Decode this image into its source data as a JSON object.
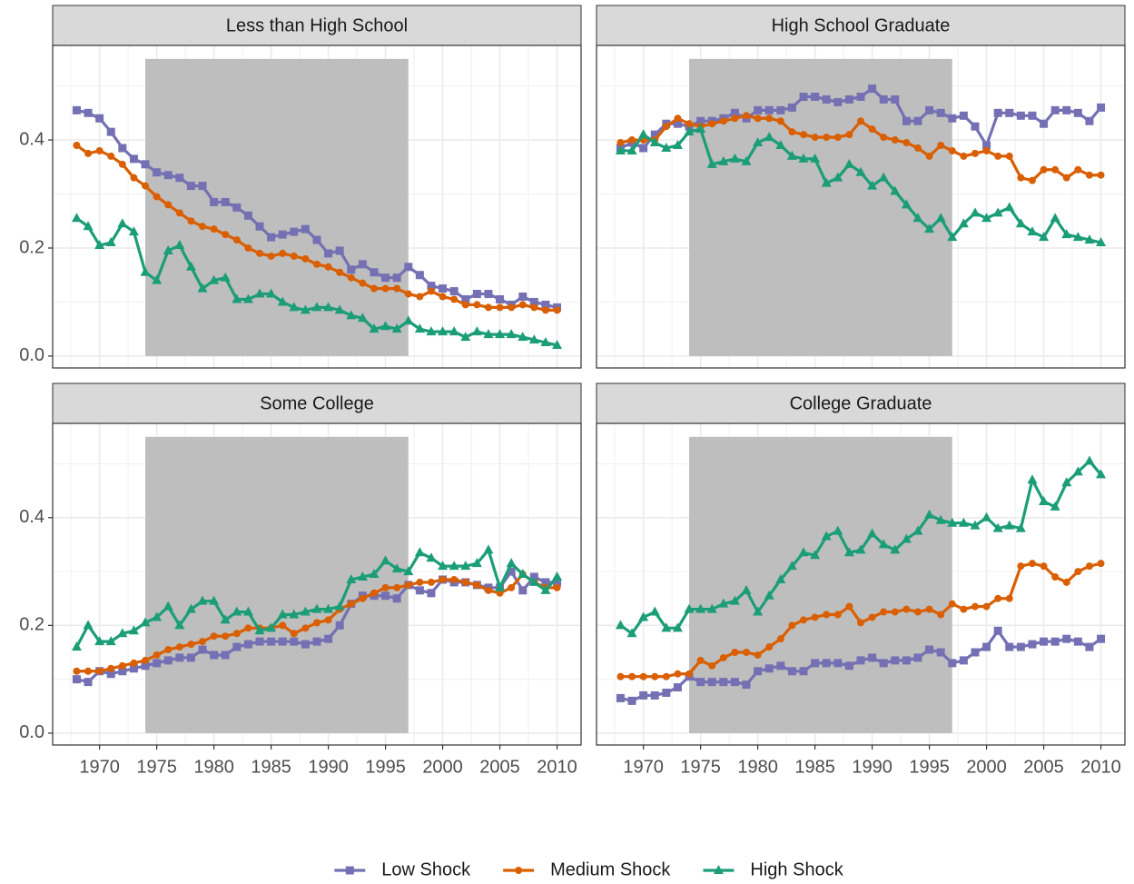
{
  "chart_data": [
    {
      "type": "line",
      "title": "Less than High School",
      "x": [
        1968,
        1969,
        1970,
        1971,
        1972,
        1973,
        1974,
        1975,
        1976,
        1977,
        1978,
        1979,
        1980,
        1981,
        1982,
        1983,
        1984,
        1985,
        1986,
        1987,
        1988,
        1989,
        1990,
        1991,
        1992,
        1993,
        1994,
        1995,
        1996,
        1997,
        1998,
        1999,
        2000,
        2001,
        2002,
        2003,
        2004,
        2005,
        2006,
        2007,
        2008,
        2009,
        2010
      ],
      "series": [
        {
          "name": "Low Shock",
          "color": "#7570b3",
          "marker": "square",
          "values": [
            0.455,
            0.45,
            0.44,
            0.415,
            0.385,
            0.365,
            0.355,
            0.34,
            0.335,
            0.33,
            0.315,
            0.315,
            0.285,
            0.285,
            0.275,
            0.26,
            0.24,
            0.22,
            0.225,
            0.23,
            0.235,
            0.215,
            0.19,
            0.195,
            0.16,
            0.17,
            0.155,
            0.145,
            0.145,
            0.165,
            0.15,
            0.13,
            0.125,
            0.12,
            0.105,
            0.115,
            0.115,
            0.105,
            0.095,
            0.11,
            0.1,
            0.095,
            0.09
          ]
        },
        {
          "name": "Medium Shock",
          "color": "#d95f02",
          "marker": "circle",
          "values": [
            0.39,
            0.375,
            0.38,
            0.37,
            0.355,
            0.33,
            0.315,
            0.295,
            0.28,
            0.265,
            0.25,
            0.24,
            0.235,
            0.225,
            0.215,
            0.2,
            0.19,
            0.185,
            0.19,
            0.185,
            0.18,
            0.17,
            0.165,
            0.155,
            0.145,
            0.135,
            0.125,
            0.125,
            0.125,
            0.115,
            0.11,
            0.12,
            0.11,
            0.105,
            0.095,
            0.095,
            0.09,
            0.09,
            0.09,
            0.095,
            0.09,
            0.085,
            0.085
          ]
        },
        {
          "name": "High Shock",
          "color": "#1b9e77",
          "marker": "triangle",
          "values": [
            0.255,
            0.24,
            0.205,
            0.21,
            0.245,
            0.23,
            0.155,
            0.14,
            0.195,
            0.205,
            0.165,
            0.125,
            0.14,
            0.145,
            0.105,
            0.105,
            0.115,
            0.115,
            0.1,
            0.09,
            0.085,
            0.09,
            0.09,
            0.085,
            0.075,
            0.07,
            0.05,
            0.055,
            0.05,
            0.065,
            0.05,
            0.045,
            0.045,
            0.045,
            0.035,
            0.045,
            0.04,
            0.04,
            0.04,
            0.035,
            0.03,
            0.025,
            0.02
          ]
        }
      ],
      "highlight_x": [
        1974,
        1997
      ],
      "highlight_y": [
        0,
        0.55
      ],
      "xlim": [
        1965.9,
        2012.1
      ],
      "ylim": [
        -0.022,
        0.575
      ],
      "xticks": [
        1970,
        1975,
        1980,
        1985,
        1990,
        1995,
        2000,
        2005,
        2010
      ],
      "yticks": [
        {
          "value": 0,
          "label": "0.0"
        },
        {
          "value": 0.2,
          "label": "0.2"
        },
        {
          "value": 0.4,
          "label": "0.4"
        }
      ],
      "grid": true,
      "legend": "bottom"
    },
    {
      "type": "line",
      "title": "High School Graduate",
      "x": [
        1968,
        1969,
        1970,
        1971,
        1972,
        1973,
        1974,
        1975,
        1976,
        1977,
        1978,
        1979,
        1980,
        1981,
        1982,
        1983,
        1984,
        1985,
        1986,
        1987,
        1988,
        1989,
        1990,
        1991,
        1992,
        1993,
        1994,
        1995,
        1996,
        1997,
        1998,
        1999,
        2000,
        2001,
        2002,
        2003,
        2004,
        2005,
        2006,
        2007,
        2008,
        2009,
        2010
      ],
      "series": [
        {
          "name": "Low Shock",
          "color": "#7570b3",
          "marker": "square",
          "values": [
            0.385,
            0.395,
            0.385,
            0.41,
            0.43,
            0.43,
            0.425,
            0.435,
            0.435,
            0.44,
            0.45,
            0.44,
            0.455,
            0.455,
            0.455,
            0.46,
            0.48,
            0.48,
            0.475,
            0.47,
            0.475,
            0.48,
            0.495,
            0.475,
            0.475,
            0.435,
            0.435,
            0.455,
            0.45,
            0.44,
            0.445,
            0.425,
            0.39,
            0.45,
            0.45,
            0.445,
            0.445,
            0.43,
            0.455,
            0.455,
            0.45,
            0.435,
            0.46
          ]
        },
        {
          "name": "Medium Shock",
          "color": "#d95f02",
          "marker": "circle",
          "values": [
            0.395,
            0.4,
            0.4,
            0.4,
            0.425,
            0.44,
            0.43,
            0.425,
            0.43,
            0.435,
            0.44,
            0.445,
            0.44,
            0.44,
            0.435,
            0.415,
            0.41,
            0.405,
            0.405,
            0.405,
            0.41,
            0.435,
            0.42,
            0.405,
            0.4,
            0.395,
            0.385,
            0.37,
            0.39,
            0.38,
            0.37,
            0.375,
            0.38,
            0.37,
            0.37,
            0.33,
            0.325,
            0.345,
            0.345,
            0.33,
            0.345,
            0.335,
            0.335
          ]
        },
        {
          "name": "High Shock",
          "color": "#1b9e77",
          "marker": "triangle",
          "values": [
            0.38,
            0.38,
            0.41,
            0.395,
            0.385,
            0.39,
            0.415,
            0.42,
            0.355,
            0.36,
            0.365,
            0.36,
            0.395,
            0.405,
            0.39,
            0.37,
            0.365,
            0.365,
            0.32,
            0.33,
            0.355,
            0.34,
            0.315,
            0.33,
            0.305,
            0.28,
            0.255,
            0.235,
            0.255,
            0.22,
            0.245,
            0.265,
            0.255,
            0.265,
            0.275,
            0.245,
            0.23,
            0.22,
            0.255,
            0.225,
            0.22,
            0.215,
            0.21
          ]
        }
      ],
      "highlight_x": [
        1974,
        1997
      ],
      "highlight_y": [
        0,
        0.55
      ],
      "xlim": [
        1965.9,
        2012.1
      ],
      "ylim": [
        -0.022,
        0.575
      ],
      "xticks": [
        1970,
        1975,
        1980,
        1985,
        1990,
        1995,
        2000,
        2005,
        2010
      ],
      "yticks": [
        0,
        0.2,
        0.4
      ],
      "grid": true
    },
    {
      "type": "line",
      "title": "Some College",
      "x": [
        1968,
        1969,
        1970,
        1971,
        1972,
        1973,
        1974,
        1975,
        1976,
        1977,
        1978,
        1979,
        1980,
        1981,
        1982,
        1983,
        1984,
        1985,
        1986,
        1987,
        1988,
        1989,
        1990,
        1991,
        1992,
        1993,
        1994,
        1995,
        1996,
        1997,
        1998,
        1999,
        2000,
        2001,
        2002,
        2003,
        2004,
        2005,
        2006,
        2007,
        2008,
        2009,
        2010
      ],
      "series": [
        {
          "name": "Low Shock",
          "color": "#7570b3",
          "marker": "square",
          "values": [
            0.1,
            0.095,
            0.115,
            0.11,
            0.115,
            0.12,
            0.125,
            0.13,
            0.135,
            0.14,
            0.14,
            0.155,
            0.145,
            0.145,
            0.16,
            0.165,
            0.17,
            0.17,
            0.17,
            0.17,
            0.165,
            0.17,
            0.175,
            0.2,
            0.24,
            0.255,
            0.255,
            0.255,
            0.25,
            0.275,
            0.265,
            0.26,
            0.285,
            0.28,
            0.28,
            0.275,
            0.27,
            0.27,
            0.3,
            0.265,
            0.29,
            0.28,
            0.28
          ]
        },
        {
          "name": "Medium Shock",
          "color": "#d95f02",
          "marker": "circle",
          "values": [
            0.115,
            0.115,
            0.115,
            0.12,
            0.125,
            0.13,
            0.135,
            0.145,
            0.155,
            0.16,
            0.165,
            0.17,
            0.18,
            0.18,
            0.185,
            0.195,
            0.195,
            0.195,
            0.2,
            0.185,
            0.195,
            0.205,
            0.21,
            0.23,
            0.24,
            0.25,
            0.26,
            0.27,
            0.27,
            0.275,
            0.28,
            0.28,
            0.285,
            0.285,
            0.28,
            0.275,
            0.265,
            0.26,
            0.27,
            0.295,
            0.28,
            0.27,
            0.27
          ]
        },
        {
          "name": "High Shock",
          "color": "#1b9e77",
          "marker": "triangle",
          "values": [
            0.16,
            0.2,
            0.17,
            0.17,
            0.185,
            0.19,
            0.205,
            0.215,
            0.235,
            0.2,
            0.23,
            0.245,
            0.245,
            0.21,
            0.225,
            0.225,
            0.19,
            0.195,
            0.22,
            0.22,
            0.225,
            0.23,
            0.23,
            0.235,
            0.285,
            0.29,
            0.295,
            0.32,
            0.305,
            0.3,
            0.335,
            0.325,
            0.31,
            0.31,
            0.31,
            0.315,
            0.34,
            0.27,
            0.315,
            0.295,
            0.28,
            0.265,
            0.29
          ]
        }
      ],
      "highlight_x": [
        1974,
        1997
      ],
      "highlight_y": [
        0,
        0.55
      ],
      "xlim": [
        1965.9,
        2012.1
      ],
      "ylim": [
        -0.022,
        0.575
      ],
      "xticks": [
        1970,
        1975,
        1980,
        1985,
        1990,
        1995,
        2000,
        2005,
        2010
      ],
      "yticks": [
        {
          "value": 0,
          "label": "0.0"
        },
        {
          "value": 0.2,
          "label": "0.2"
        },
        {
          "value": 0.4,
          "label": "0.4"
        }
      ],
      "grid": true
    },
    {
      "type": "line",
      "title": "College Graduate",
      "x": [
        1968,
        1969,
        1970,
        1971,
        1972,
        1973,
        1974,
        1975,
        1976,
        1977,
        1978,
        1979,
        1980,
        1981,
        1982,
        1983,
        1984,
        1985,
        1986,
        1987,
        1988,
        1989,
        1990,
        1991,
        1992,
        1993,
        1994,
        1995,
        1996,
        1997,
        1998,
        1999,
        2000,
        2001,
        2002,
        2003,
        2004,
        2005,
        2006,
        2007,
        2008,
        2009,
        2010
      ],
      "series": [
        {
          "name": "Low Shock",
          "color": "#7570b3",
          "marker": "square",
          "values": [
            0.065,
            0.06,
            0.07,
            0.07,
            0.075,
            0.085,
            0.105,
            0.095,
            0.095,
            0.095,
            0.095,
            0.09,
            0.115,
            0.12,
            0.125,
            0.115,
            0.115,
            0.13,
            0.13,
            0.13,
            0.125,
            0.135,
            0.14,
            0.13,
            0.135,
            0.135,
            0.14,
            0.155,
            0.15,
            0.13,
            0.135,
            0.15,
            0.16,
            0.19,
            0.16,
            0.16,
            0.165,
            0.17,
            0.17,
            0.175,
            0.17,
            0.16,
            0.175
          ]
        },
        {
          "name": "Medium Shock",
          "color": "#d95f02",
          "marker": "circle",
          "values": [
            0.105,
            0.105,
            0.105,
            0.105,
            0.105,
            0.11,
            0.11,
            0.135,
            0.125,
            0.14,
            0.15,
            0.15,
            0.145,
            0.16,
            0.175,
            0.2,
            0.21,
            0.215,
            0.22,
            0.22,
            0.235,
            0.205,
            0.215,
            0.225,
            0.225,
            0.23,
            0.225,
            0.23,
            0.22,
            0.24,
            0.23,
            0.235,
            0.235,
            0.25,
            0.25,
            0.31,
            0.315,
            0.31,
            0.29,
            0.28,
            0.3,
            0.31,
            0.315
          ]
        },
        {
          "name": "High Shock",
          "color": "#1b9e77",
          "marker": "triangle",
          "values": [
            0.2,
            0.185,
            0.215,
            0.225,
            0.195,
            0.195,
            0.23,
            0.23,
            0.23,
            0.24,
            0.245,
            0.265,
            0.225,
            0.255,
            0.285,
            0.31,
            0.335,
            0.33,
            0.365,
            0.375,
            0.335,
            0.34,
            0.37,
            0.35,
            0.34,
            0.36,
            0.375,
            0.405,
            0.395,
            0.39,
            0.39,
            0.385,
            0.4,
            0.38,
            0.385,
            0.38,
            0.47,
            0.43,
            0.42,
            0.465,
            0.485,
            0.505,
            0.48
          ]
        }
      ],
      "highlight_x": [
        1974,
        1997
      ],
      "highlight_y": [
        0,
        0.55
      ],
      "xlim": [
        1965.9,
        2012.1
      ],
      "ylim": [
        -0.022,
        0.575
      ],
      "xticks": [
        1970,
        1975,
        1980,
        1985,
        1990,
        1995,
        2000,
        2005,
        2010
      ],
      "yticks": [
        0,
        0.2,
        0.4
      ],
      "grid": true
    }
  ]
}
